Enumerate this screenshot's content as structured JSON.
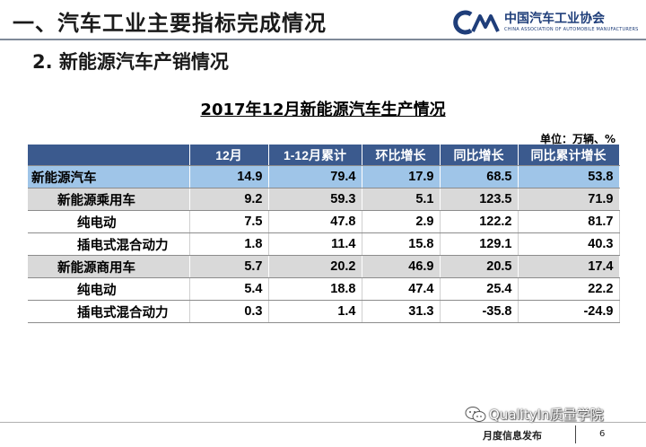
{
  "slide": {
    "heading1": "一、汽车工业主要指标完成情况",
    "heading2": "2. 新能源汽车产销情况",
    "logo_text": "中国汽车工业协会",
    "logo_subtext": "CHINA ASSOCIATION OF AUTOMOBILE MANUFACTURERS"
  },
  "table": {
    "title": "2017年12月新能源汽车生产情况",
    "unit": "单位：万辆、%",
    "headers": [
      "",
      "12月",
      "1-12月累计",
      "环比增长",
      "同比增长",
      "同比累计增长"
    ],
    "rows": [
      {
        "label": "新能源汽车",
        "values": [
          "14.9",
          "79.4",
          "17.9",
          "68.5",
          "53.8"
        ]
      },
      {
        "label": "新能源乘用车",
        "values": [
          "9.2",
          "59.3",
          "5.1",
          "123.5",
          "71.9"
        ]
      },
      {
        "label": "纯电动",
        "values": [
          "7.5",
          "47.8",
          "2.9",
          "122.2",
          "81.7"
        ]
      },
      {
        "label": "插电式混合动力",
        "values": [
          "1.8",
          "11.4",
          "15.8",
          "129.1",
          "40.3"
        ]
      },
      {
        "label": "新能源商用车",
        "values": [
          "5.7",
          "20.2",
          "46.9",
          "20.5",
          "17.4"
        ]
      },
      {
        "label": "纯电动",
        "values": [
          "5.4",
          "18.8",
          "47.4",
          "25.4",
          "22.2"
        ]
      },
      {
        "label": "插电式混合动力",
        "values": [
          "0.3",
          "1.4",
          "31.3",
          "-35.8",
          "-24.9"
        ]
      }
    ]
  },
  "footer": {
    "text": "月度信息发布",
    "page": "6",
    "watermark": "QualityIn质量学院"
  },
  "colors": {
    "header_bg": "#3b5a8e",
    "total_bg": "#9fc5e8",
    "sub_bg": "#d9d9d9",
    "logo": "#1f3e7a"
  },
  "icons": [
    "cam-logo-icon",
    "wechat-icon"
  ]
}
